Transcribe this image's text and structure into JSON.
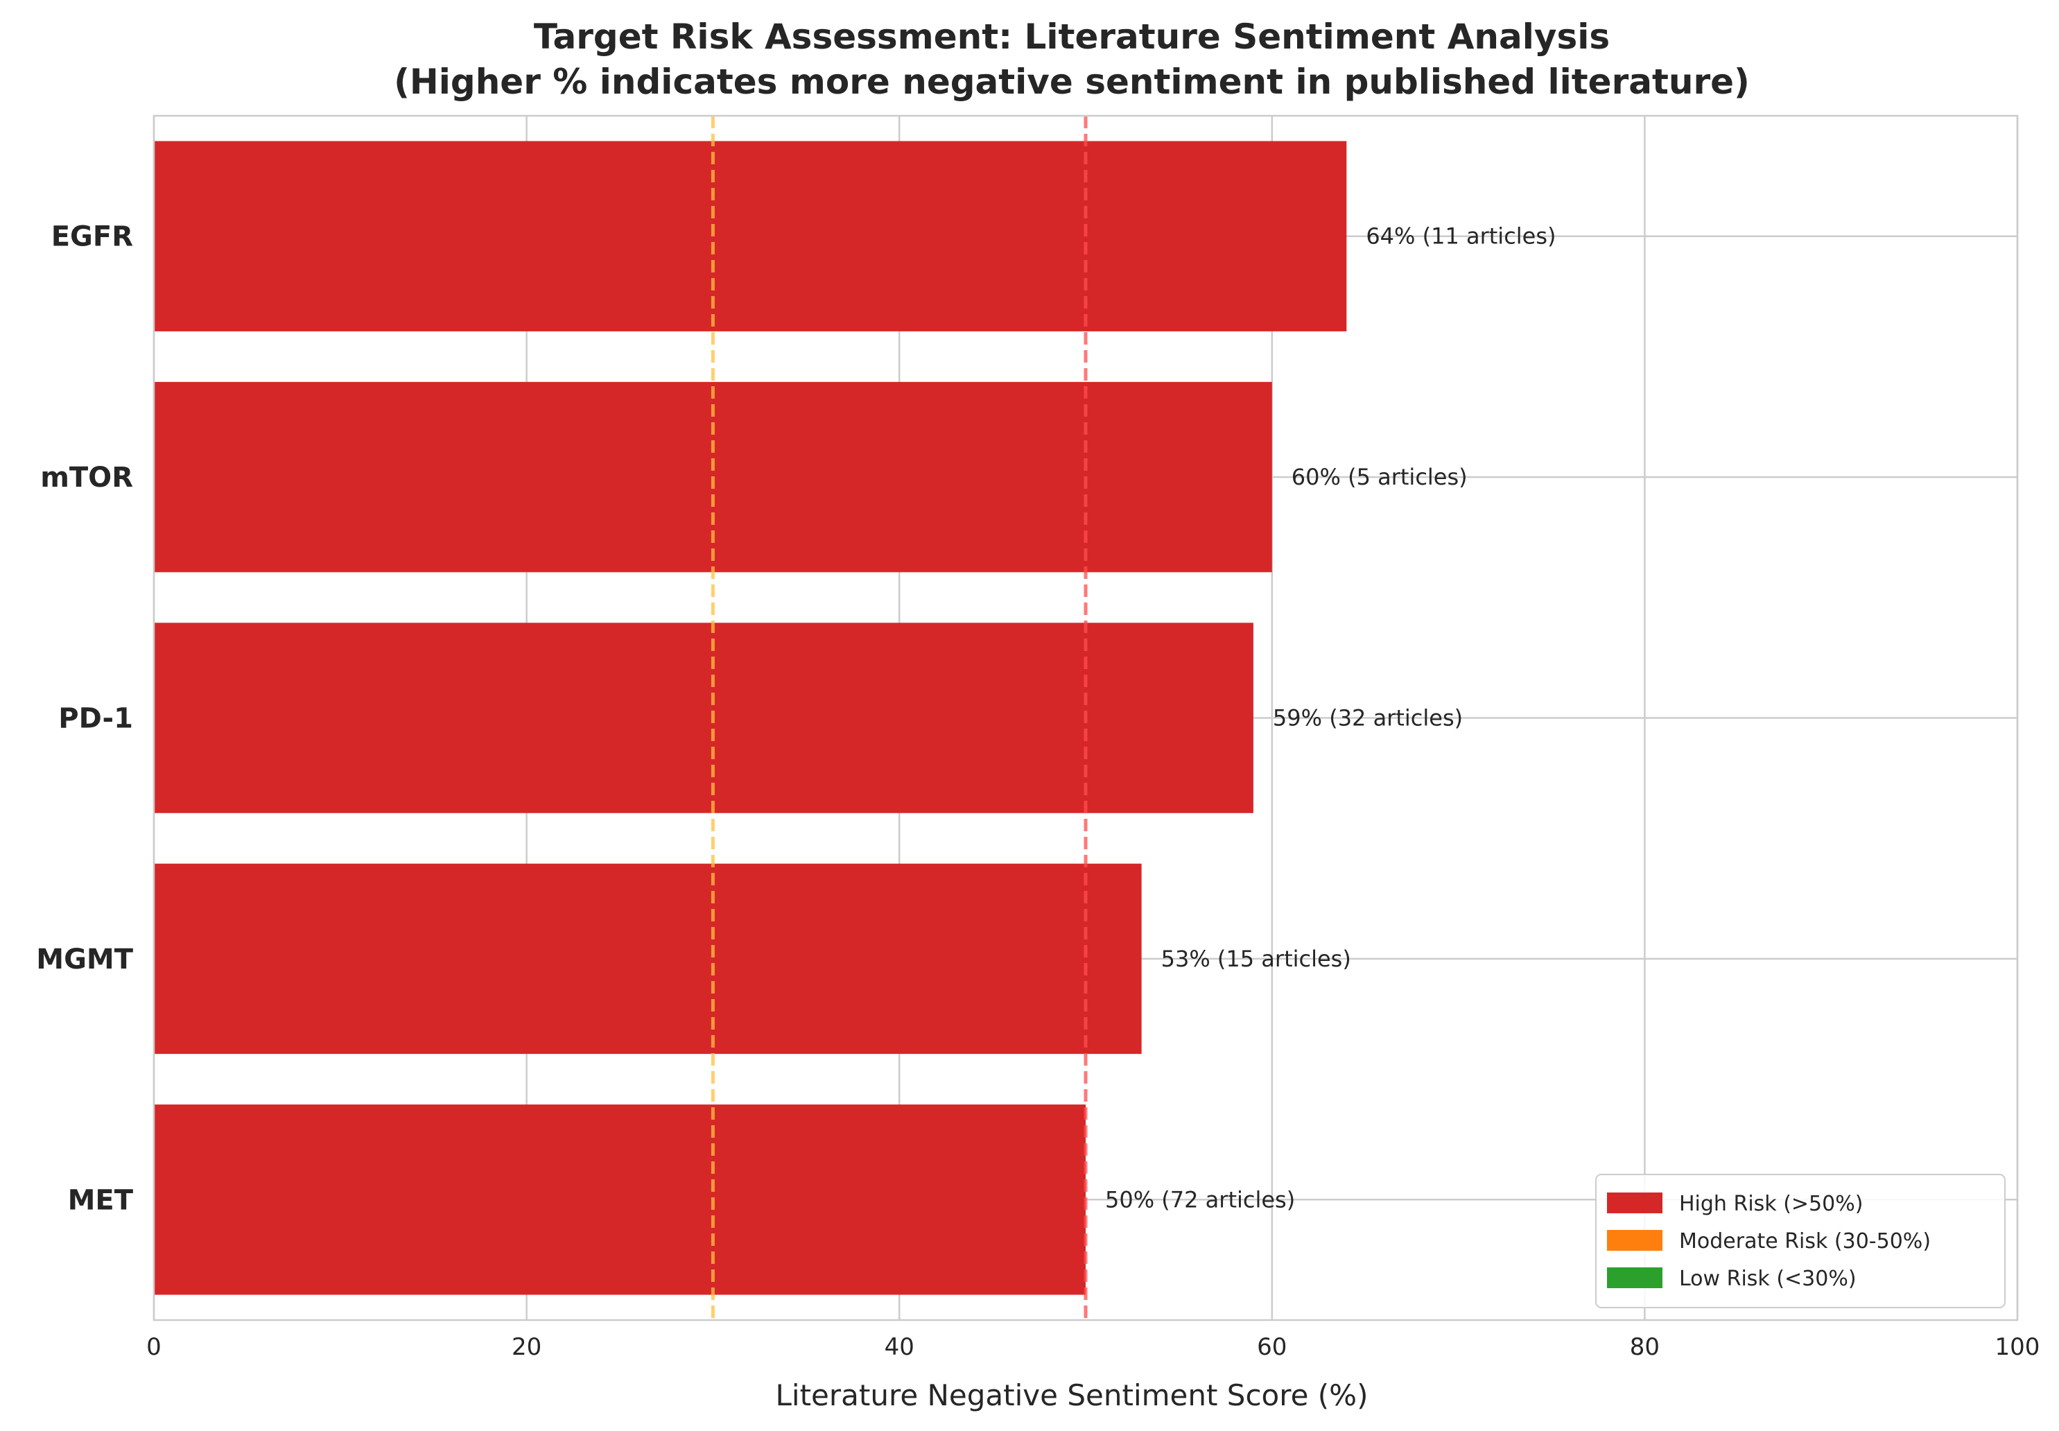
{
  "chart_data": {
    "type": "bar",
    "orientation": "horizontal",
    "title_line1": "Target Risk Assessment: Literature Sentiment Analysis",
    "title_line2": "(Higher % indicates more negative sentiment in published literature)",
    "xlabel": "Literature Negative Sentiment Score (%)",
    "ylabel": "",
    "xlim": [
      0,
      100
    ],
    "xticks": [
      "0",
      "20",
      "40",
      "60",
      "80",
      "100"
    ],
    "xtick_values": [
      0,
      20,
      40,
      60,
      80,
      100
    ],
    "grid": true,
    "categories": [
      "EGFR",
      "mTOR",
      "PD-1",
      "MGMT",
      "MET"
    ],
    "values": [
      64,
      60,
      59,
      53,
      50
    ],
    "bar_labels": [
      "64% (11 articles)",
      "60% (5 articles)",
      "59% (32 articles)",
      "53% (15 articles)",
      "50% (72 articles)"
    ],
    "bar_color": "#d62728",
    "reference_lines": [
      {
        "value": 30,
        "color": "#ffbf40"
      },
      {
        "value": 50,
        "color": "#ff4d4d"
      }
    ],
    "legend": {
      "placement": "lower-right",
      "entries": [
        {
          "label": "High Risk (>50%)",
          "color": "#d62728"
        },
        {
          "label": "Moderate Risk (30-50%)",
          "color": "#ff7f0e"
        },
        {
          "label": "Low Risk (<30%)",
          "color": "#2ca02c"
        }
      ]
    }
  }
}
